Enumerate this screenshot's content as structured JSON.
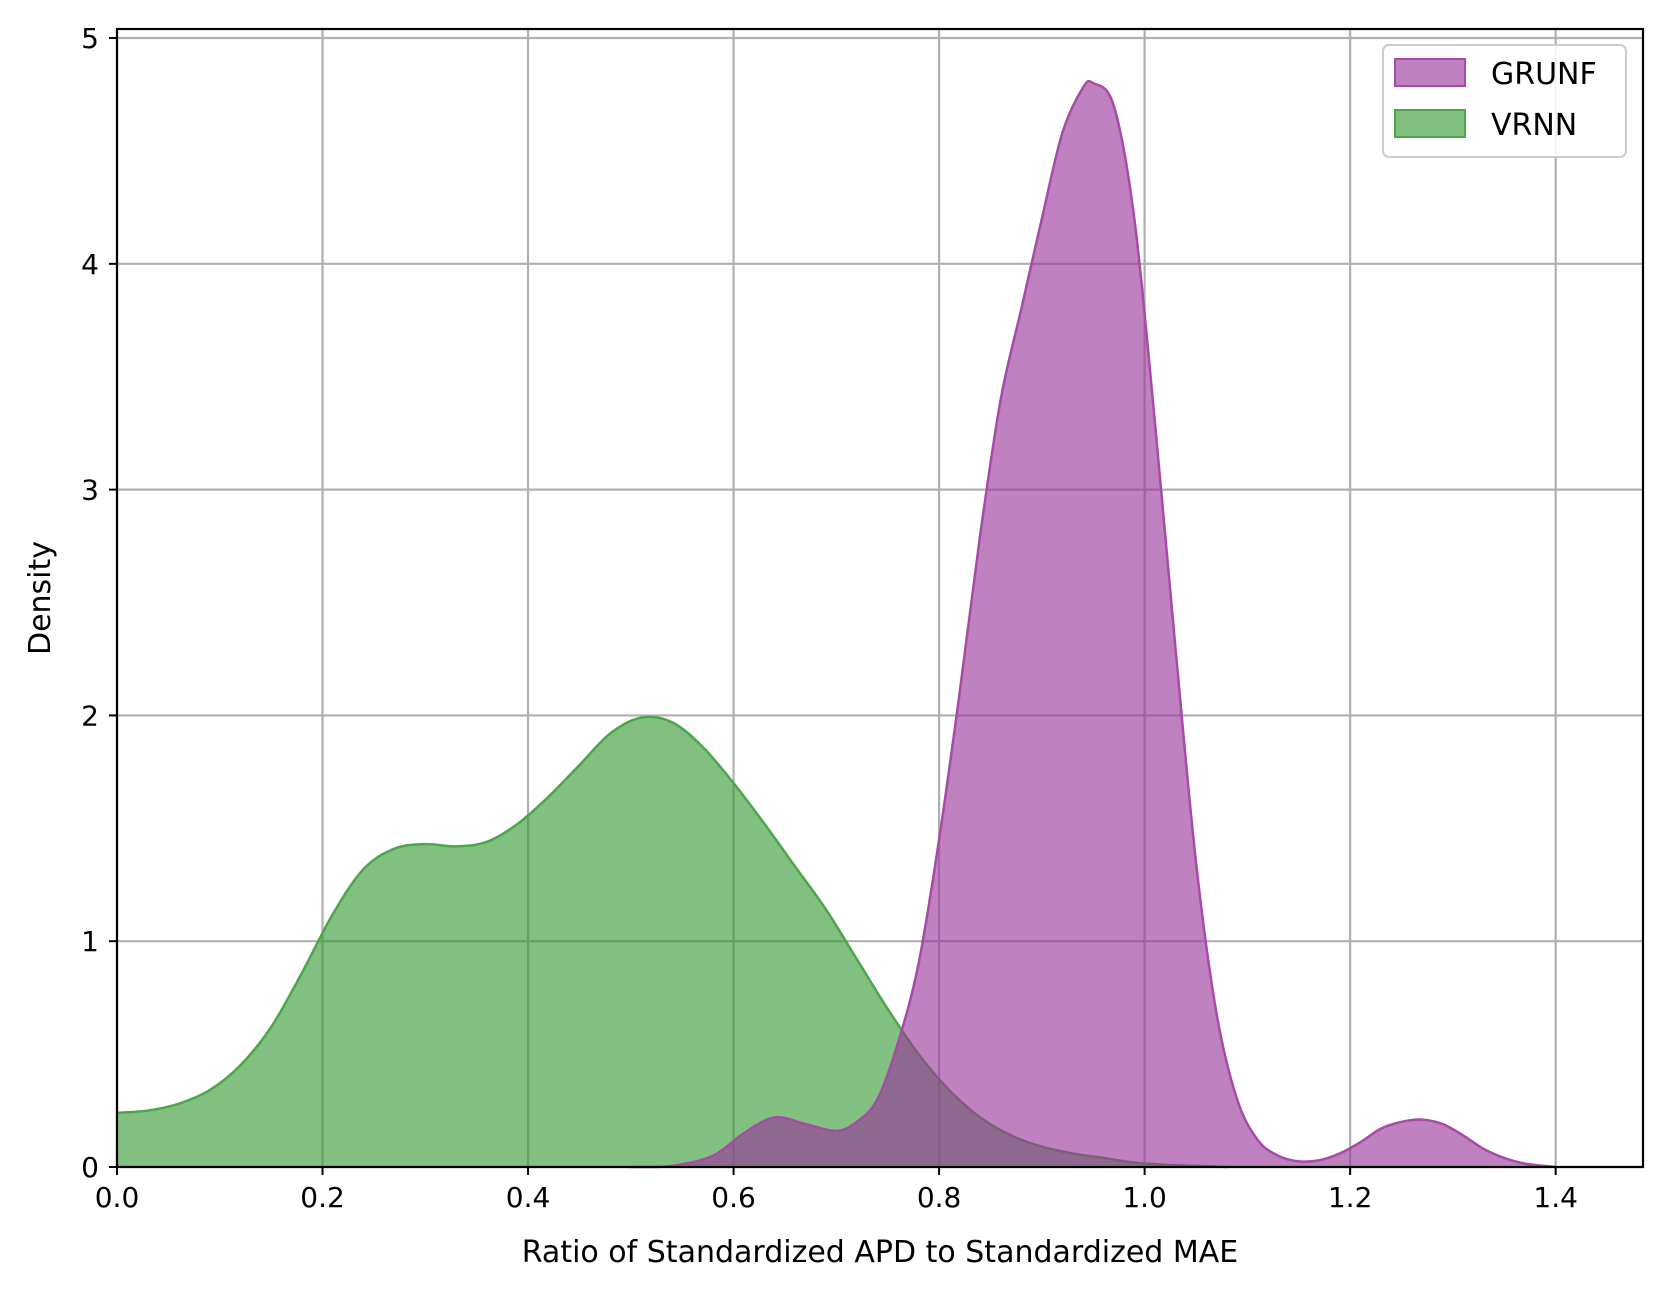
{
  "chart_data": {
    "type": "area",
    "title": "",
    "xlabel": "Ratio of Standardized APD to Standardized MAE",
    "ylabel": "Density",
    "xlim": [
      0.0,
      1.485
    ],
    "ylim": [
      0,
      5.04
    ],
    "x_ticks": [
      0.0,
      0.2,
      0.4,
      0.6,
      0.8,
      1.0,
      1.2,
      1.4
    ],
    "x_tick_labels": [
      "0.0",
      "0.2",
      "0.4",
      "0.6",
      "0.8",
      "1.0",
      "1.2",
      "1.4"
    ],
    "y_ticks": [
      0,
      1,
      2,
      3,
      4,
      5
    ],
    "y_tick_labels": [
      "0",
      "1",
      "2",
      "3",
      "4",
      "5"
    ],
    "grid": true,
    "legend_position": "top-right",
    "series": [
      {
        "name": "VRNN",
        "color": "#4ca64c",
        "fill": "#339933",
        "x": [
          0.0,
          0.03,
          0.06,
          0.09,
          0.12,
          0.15,
          0.18,
          0.21,
          0.24,
          0.27,
          0.3,
          0.33,
          0.36,
          0.39,
          0.42,
          0.45,
          0.48,
          0.51,
          0.54,
          0.57,
          0.6,
          0.63,
          0.66,
          0.69,
          0.72,
          0.75,
          0.78,
          0.81,
          0.84,
          0.87,
          0.9,
          0.93,
          0.96,
          0.99,
          1.02,
          1.05,
          1.08
        ],
        "y": [
          0.24,
          0.25,
          0.28,
          0.34,
          0.45,
          0.62,
          0.86,
          1.12,
          1.32,
          1.41,
          1.43,
          1.42,
          1.44,
          1.52,
          1.64,
          1.78,
          1.92,
          1.99,
          1.97,
          1.86,
          1.7,
          1.52,
          1.33,
          1.14,
          0.92,
          0.7,
          0.5,
          0.34,
          0.22,
          0.14,
          0.09,
          0.06,
          0.04,
          0.02,
          0.01,
          0.005,
          0.0
        ]
      },
      {
        "name": "GRUNF",
        "color": "#a64ca6",
        "fill": "#993399",
        "x": [
          0.5,
          0.54,
          0.58,
          0.61,
          0.64,
          0.67,
          0.7,
          0.72,
          0.74,
          0.76,
          0.78,
          0.8,
          0.82,
          0.84,
          0.86,
          0.88,
          0.9,
          0.92,
          0.94,
          0.95,
          0.97,
          0.99,
          1.01,
          1.03,
          1.05,
          1.07,
          1.09,
          1.11,
          1.13,
          1.15,
          1.17,
          1.19,
          1.21,
          1.23,
          1.25,
          1.27,
          1.29,
          1.31,
          1.33,
          1.35,
          1.37,
          1.4
        ],
        "y": [
          0.0,
          0.005,
          0.05,
          0.15,
          0.22,
          0.19,
          0.16,
          0.2,
          0.3,
          0.55,
          0.9,
          1.45,
          2.1,
          2.8,
          3.4,
          3.8,
          4.2,
          4.58,
          4.78,
          4.8,
          4.7,
          4.2,
          3.3,
          2.3,
          1.35,
          0.68,
          0.3,
          0.12,
          0.05,
          0.025,
          0.03,
          0.06,
          0.11,
          0.17,
          0.2,
          0.21,
          0.19,
          0.14,
          0.08,
          0.04,
          0.015,
          0.0
        ]
      }
    ]
  }
}
